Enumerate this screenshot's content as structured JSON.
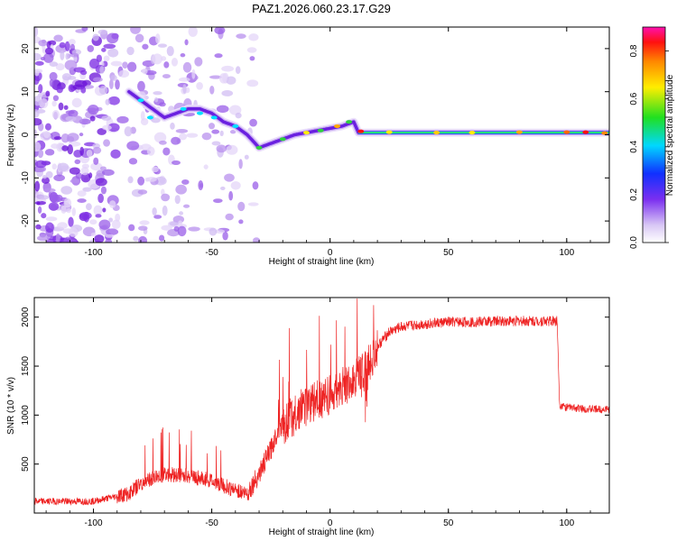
{
  "chart_data": [
    {
      "type": "heatmap",
      "title": "PAZ1.2026.060.23.17.G29",
      "xlabel": "Height of straight line (km)",
      "ylabel": "Frequency (Hz)",
      "xlim": [
        -125,
        118
      ],
      "ylim": [
        -25,
        25
      ],
      "xticks": [
        -100,
        -50,
        0,
        50,
        100
      ],
      "yticks": [
        -20,
        -10,
        0,
        10,
        20
      ],
      "colorbar": {
        "label": "Normalized spectral amplitude",
        "range": [
          0.0,
          0.9
        ],
        "ticks": [
          "0.0",
          "0.2",
          "0.4",
          "0.6",
          "0.8"
        ],
        "colormap": "rainbow (white-purple-blue-cyan-green-yellow-orange-red-magenta)"
      },
      "ridge": {
        "x": [
          -85,
          -80,
          -75,
          -70,
          -65,
          -60,
          -55,
          -50,
          -45,
          -40,
          -35,
          -30,
          -25,
          -20,
          -15,
          -10,
          -5,
          0,
          5,
          10,
          12,
          20,
          40,
          60,
          80,
          100,
          118
        ],
        "y": [
          10,
          8,
          6,
          4,
          5,
          6,
          6,
          5,
          3,
          2,
          0,
          -3,
          -2,
          -1,
          0,
          0.5,
          1,
          1.5,
          2,
          3,
          0.5,
          0.5,
          0.5,
          0.5,
          0.5,
          0.5,
          0.5
        ]
      }
    },
    {
      "type": "line",
      "title": "",
      "xlabel": "Height of straight line (km)",
      "ylabel": "SNR (10 * v/v)",
      "xlim": [
        -125,
        118
      ],
      "ylim": [
        0,
        2200
      ],
      "xticks": [
        -100,
        -50,
        0,
        50,
        100
      ],
      "yticks": [
        500,
        1000,
        1500,
        2000
      ],
      "color": "#ee2222",
      "envelope": {
        "x": [
          -125,
          -100,
          -85,
          -80,
          -70,
          -60,
          -50,
          -42,
          -35,
          -30,
          -25,
          -22,
          -20,
          -15,
          -10,
          -5,
          0,
          5,
          10,
          15,
          20,
          25,
          30,
          40,
          50,
          60,
          70,
          80,
          90,
          96,
          97,
          100,
          110,
          118
        ],
        "y": [
          120,
          120,
          200,
          300,
          400,
          380,
          330,
          250,
          200,
          400,
          650,
          850,
          900,
          1000,
          1100,
          1150,
          1200,
          1280,
          1350,
          1450,
          1700,
          1850,
          1900,
          1930,
          1950,
          1950,
          1960,
          1960,
          1960,
          1960,
          1100,
          1080,
          1060,
          1060
        ]
      }
    }
  ]
}
